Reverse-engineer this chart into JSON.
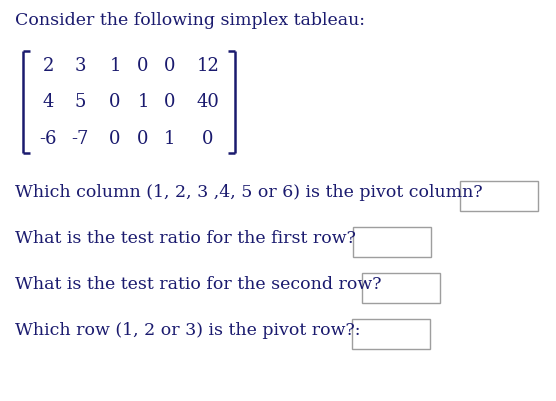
{
  "title": "Consider the following simplex tableau:",
  "matrix": [
    [
      "2",
      "3",
      "1",
      "0",
      "0",
      "12"
    ],
    [
      "4",
      "5",
      "0",
      "1",
      "0",
      "40"
    ],
    [
      "-6",
      "-7",
      "0",
      "0",
      "1",
      "0"
    ]
  ],
  "questions": [
    "Which column (1, 2, 3 ,4, 5 or 6) is the pivot column?",
    "What is the test ratio for the first row?",
    "What is the test ratio for the second row?",
    "Which row (1, 2 or 3) is the pivot row?:"
  ],
  "bg_color": "#ffffff",
  "text_color": "#1a1a6e",
  "font_size": 12.5,
  "matrix_font_size": 13
}
